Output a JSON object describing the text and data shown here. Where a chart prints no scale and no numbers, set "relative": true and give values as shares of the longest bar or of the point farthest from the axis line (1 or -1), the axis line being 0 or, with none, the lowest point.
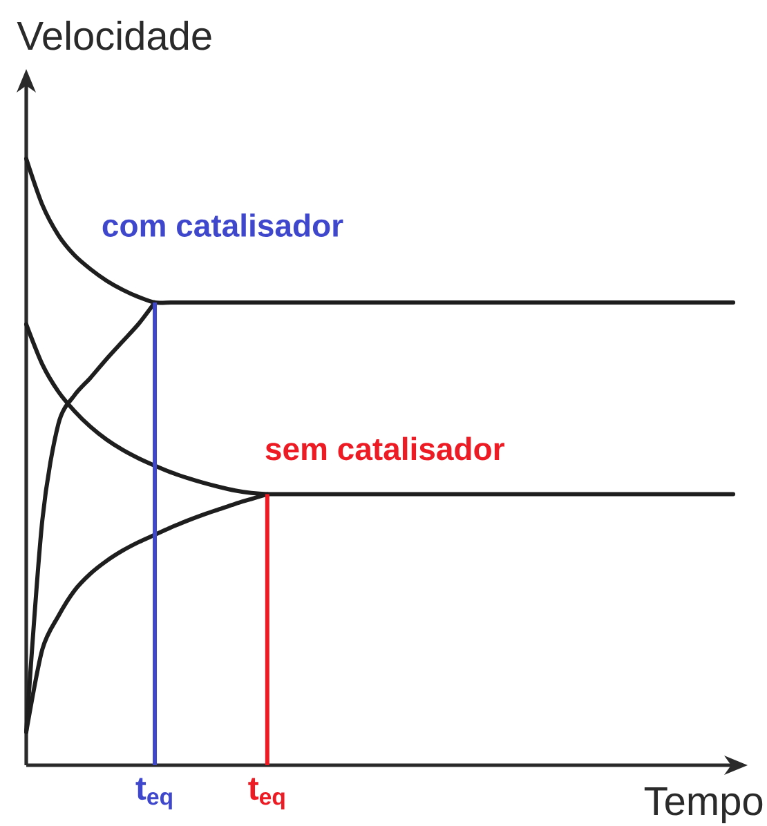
{
  "chart_data": {
    "type": "line",
    "relative": true,
    "xlabel": "Tempo",
    "ylabel": "Velocidade",
    "categories": [
      null,
      null,
      null,
      null,
      null,
      null,
      null,
      null,
      "t$_{eq}$",
      null,
      null,
      null,
      null,
      null,
      null,
      "t$_{eq}$",
      null,
      null,
      null,
      null,
      null,
      null,
      null,
      null,
      null,
      null,
      null,
      null,
      null,
      null,
      null,
      null,
      null,
      null,
      null,
      null,
      null,
      null,
      null,
      null,
      null,
      null,
      null,
      null,
      null
    ],
    "marker": "none",
    "line_style": "solid",
    "legend": false,
    "series": [
      {
        "color": "#1e1e1e",
        "values": [
          1.0,
          0.924,
          0.874,
          0.841,
          0.818,
          0.799,
          0.784,
          0.772,
          0.763,
          0.763,
          0.763,
          0.763,
          0.763,
          0.763,
          0.763,
          0.763,
          0.763,
          0.763,
          0.763,
          0.763,
          0.763,
          0.763,
          0.763,
          0.763,
          0.763,
          0.763,
          0.763,
          0.763,
          0.763,
          0.763,
          0.763,
          0.763,
          0.763,
          0.763,
          0.763,
          0.763,
          0.763,
          0.763,
          0.763,
          0.763,
          0.763,
          0.763,
          0.763,
          0.763,
          0.763
        ]
      },
      {
        "color": "#1e1e1e",
        "values": [
          0.055,
          0.404,
          0.563,
          0.61,
          0.639,
          0.67,
          0.699,
          0.728,
          0.763,
          null,
          null,
          null,
          null,
          null,
          null,
          null,
          null,
          null,
          null,
          null,
          null,
          null,
          null,
          null,
          null,
          null,
          null,
          null,
          null,
          null,
          null,
          null,
          null,
          null,
          null,
          null,
          null,
          null,
          null,
          null,
          null,
          null,
          null,
          null,
          null
        ]
      },
      {
        "color": "#1e1e1e",
        "values": [
          0.727,
          0.661,
          0.616,
          0.584,
          0.558,
          0.537,
          0.52,
          0.506,
          0.494,
          0.483,
          0.474,
          0.466,
          0.459,
          0.453,
          0.449,
          0.447,
          0.447,
          0.447,
          0.447,
          0.447,
          0.447,
          0.447,
          0.447,
          0.447,
          0.447,
          0.447,
          0.447,
          0.447,
          0.447,
          0.447,
          0.447,
          0.447,
          0.447,
          0.447,
          0.447,
          0.447,
          0.447,
          0.447,
          0.447,
          0.447,
          0.447,
          0.447,
          0.447,
          0.447,
          0.447
        ]
      },
      {
        "color": "#1e1e1e",
        "values": [
          0.055,
          0.191,
          0.246,
          0.288,
          0.316,
          0.337,
          0.354,
          0.368,
          0.38,
          0.392,
          0.403,
          0.413,
          0.422,
          0.431,
          0.439,
          0.447,
          null,
          null,
          null,
          null,
          null,
          null,
          null,
          null,
          null,
          null,
          null,
          null,
          null,
          null,
          null,
          null,
          null,
          null,
          null,
          null,
          null,
          null,
          null,
          null,
          null,
          null,
          null,
          null,
          null
        ]
      },
      {
        "name": "com catalisador",
        "type": "bar",
        "color": "#3f48cc",
        "values": [
          null,
          null,
          null,
          null,
          null,
          null,
          null,
          null,
          0.763,
          null,
          null,
          null,
          null,
          null,
          null,
          null,
          null,
          null,
          null,
          null,
          null,
          null,
          null,
          null,
          null,
          null,
          null,
          null,
          null,
          null,
          null,
          null,
          null,
          null,
          null,
          null,
          null,
          null,
          null,
          null,
          null,
          null,
          null,
          null,
          null
        ]
      },
      {
        "name": "sem catalisador",
        "type": "bar",
        "color": "#ed1c24",
        "values": [
          null,
          null,
          null,
          null,
          null,
          null,
          null,
          null,
          null,
          null,
          null,
          null,
          null,
          null,
          null,
          0.447,
          null,
          null,
          null,
          null,
          null,
          null,
          null,
          null,
          null,
          null,
          null,
          null,
          null,
          null,
          null,
          null,
          null,
          null,
          null,
          null,
          null,
          null,
          null,
          null,
          null,
          null,
          null,
          null,
          null
        ]
      }
    ]
  }
}
